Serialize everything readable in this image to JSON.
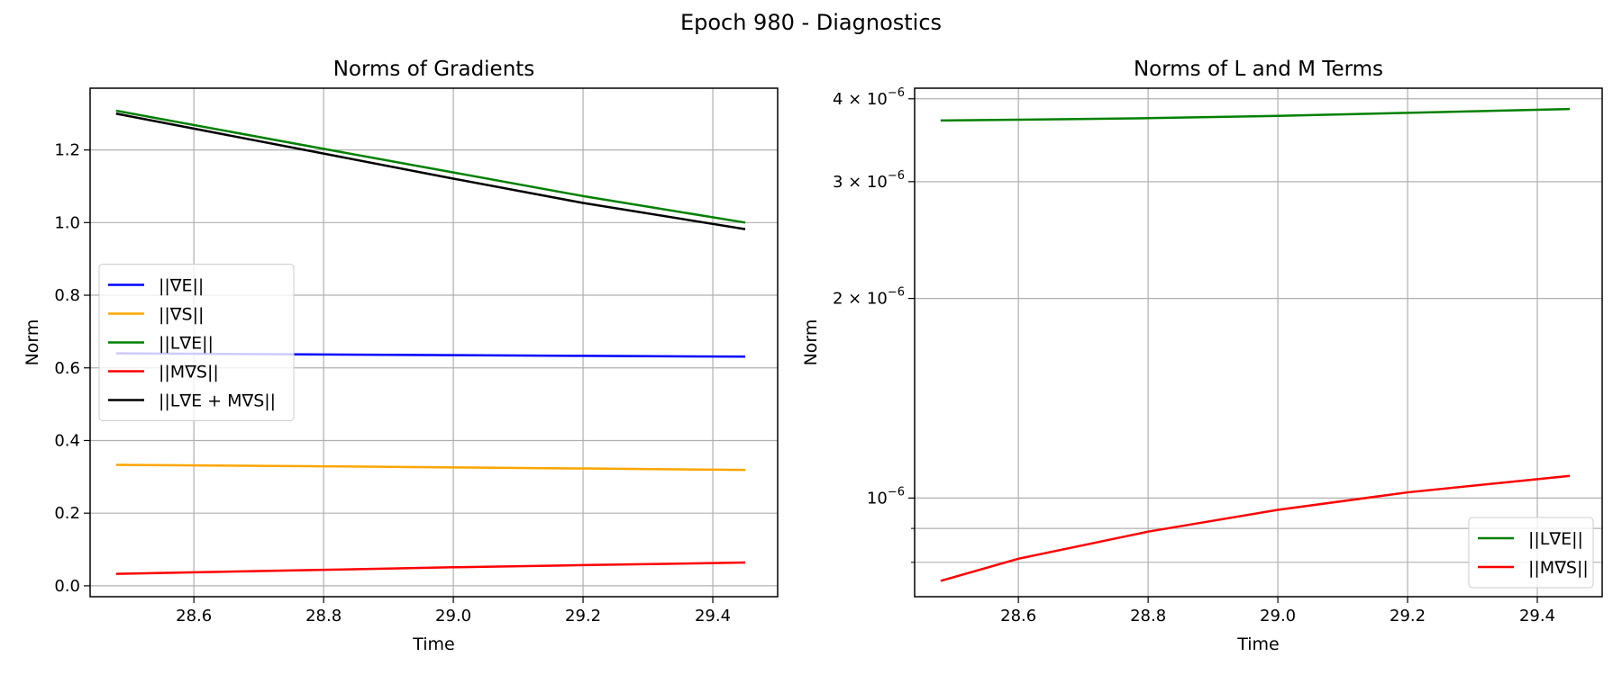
{
  "figure": {
    "title": "Epoch 980 - Diagnostics"
  },
  "chart_data": [
    {
      "type": "line",
      "title": "Norms of Gradients",
      "xlabel": "Time",
      "ylabel": "Norm",
      "xscale": "linear",
      "yscale": "linear",
      "xlim": [
        28.44,
        29.5
      ],
      "ylim": [
        -0.03,
        1.37
      ],
      "xticks": [
        28.6,
        28.8,
        29.0,
        29.2,
        29.4
      ],
      "xtick_labels": [
        "28.6",
        "28.8",
        "29.0",
        "29.2",
        "29.4"
      ],
      "yticks": [
        0.0,
        0.2,
        0.4,
        0.6,
        0.8,
        1.0,
        1.2
      ],
      "ytick_labels": [
        "0.0",
        "0.2",
        "0.4",
        "0.6",
        "0.8",
        "1.0",
        "1.2"
      ],
      "grid": true,
      "legend_position": "center-left",
      "x": [
        28.48,
        28.8,
        29.0,
        29.2,
        29.45
      ],
      "series": [
        {
          "name": "||∇E||",
          "color": "#0000ff",
          "values": [
            0.64,
            0.637,
            0.635,
            0.633,
            0.631
          ]
        },
        {
          "name": "||∇S||",
          "color": "#ffa500",
          "values": [
            0.333,
            0.329,
            0.326,
            0.323,
            0.319
          ]
        },
        {
          "name": "||L∇E||",
          "color": "#008000",
          "values": [
            1.308,
            1.203,
            1.138,
            1.073,
            1.0
          ]
        },
        {
          "name": "||M∇S||",
          "color": "#ff0000",
          "values": [
            0.033,
            0.044,
            0.051,
            0.057,
            0.064
          ]
        },
        {
          "name": "||L∇E + M∇S||",
          "color": "#000000",
          "values": [
            1.3,
            1.19,
            1.121,
            1.054,
            0.982
          ]
        }
      ]
    },
    {
      "type": "line",
      "title": "Norms of L and M Terms",
      "xlabel": "Time",
      "ylabel": "Norm",
      "xscale": "linear",
      "yscale": "log",
      "xlim": [
        28.44,
        29.5
      ],
      "ylim": [
        7.1e-07,
        4.15e-06
      ],
      "xticks": [
        28.6,
        28.8,
        29.0,
        29.2,
        29.4
      ],
      "xtick_labels": [
        "28.6",
        "28.8",
        "29.0",
        "29.2",
        "29.4"
      ],
      "yticks": [
        1e-06,
        2e-06,
        3e-06,
        4e-06
      ],
      "ytick_labels": [
        {
          "base": "10",
          "exp": "−6"
        },
        {
          "base": "2 × 10",
          "exp": "−6"
        },
        {
          "base": "3 × 10",
          "exp": "−6"
        },
        {
          "base": "4 × 10",
          "exp": "−6"
        }
      ],
      "minor_yticks": [
        8e-07,
        9e-07
      ],
      "grid": true,
      "legend_position": "lower-right",
      "x": [
        28.48,
        28.6,
        28.8,
        29.0,
        29.2,
        29.45
      ],
      "series": [
        {
          "name": "||L∇E||",
          "color": "#008000",
          "values": [
            3.71e-06,
            3.72e-06,
            3.74e-06,
            3.77e-06,
            3.81e-06,
            3.86e-06
          ]
        },
        {
          "name": "||M∇S||",
          "color": "#ff0000",
          "values": [
            7.5e-07,
            8.1e-07,
            8.9e-07,
            9.6e-07,
            1.02e-06,
            1.08e-06
          ]
        }
      ]
    }
  ]
}
